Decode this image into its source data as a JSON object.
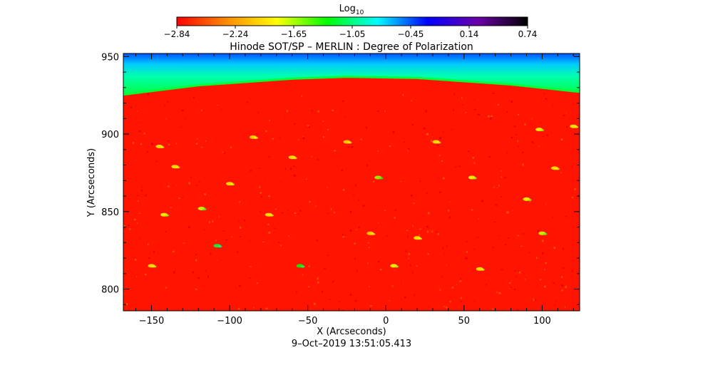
{
  "chart_data": {
    "type": "heatmap",
    "title": "Hinode SOT/SP – MERLIN : Degree of Polarization",
    "xlabel": "X (Arcseconds)",
    "ylabel": "Y (Arcseconds)",
    "timestamp": "9–Oct–2019 13:51:05.413",
    "xlim": [
      -168,
      124
    ],
    "ylim": [
      786,
      952
    ],
    "xticks": [
      -150,
      -100,
      -50,
      0,
      50,
      100
    ],
    "xtick_labels": [
      "−150",
      "−100",
      "−50",
      "0",
      "50",
      "100"
    ],
    "yticks": [
      800,
      850,
      900,
      950
    ],
    "ytick_labels": [
      "800",
      "850",
      "900",
      "950"
    ],
    "colorbar": {
      "label_base": "Log",
      "label_sub": "10",
      "ticks": [
        "−2.84",
        "−2.24",
        "−1.65",
        "−1.05",
        "−0.45",
        "0.14",
        "0.74"
      ],
      "range": [
        -2.84,
        0.74
      ],
      "colormap": "rainbow",
      "colors": [
        "#ff0000",
        "#ff8c00",
        "#ffff00",
        "#00ff00",
        "#00ffff",
        "#0000ff",
        "#6a00a8",
        "#000000"
      ]
    },
    "limb": {
      "x": [
        -168,
        -120,
        -60,
        -25,
        20,
        80,
        124
      ],
      "y": [
        925.5,
        931.5,
        935.7,
        937.0,
        936.2,
        932.0,
        927.2
      ]
    },
    "limb_level": -1.2,
    "background_level": -2.84,
    "sky_level": 0.0,
    "magnetic_patches": [
      {
        "x": -118,
        "y": 852,
        "level": -1.7
      },
      {
        "x": -142,
        "y": 848,
        "level": -1.8
      },
      {
        "x": -108,
        "y": 828,
        "level": -1.2
      },
      {
        "x": -55,
        "y": 815,
        "level": -1.3
      },
      {
        "x": -100,
        "y": 868,
        "level": -1.9
      },
      {
        "x": -145,
        "y": 892,
        "level": -1.9
      },
      {
        "x": -135,
        "y": 879,
        "level": -1.9
      },
      {
        "x": -85,
        "y": 898,
        "level": -2.0
      },
      {
        "x": -60,
        "y": 885,
        "level": -1.9
      },
      {
        "x": -5,
        "y": 872,
        "level": -1.6
      },
      {
        "x": 5,
        "y": 815,
        "level": -1.8
      },
      {
        "x": 32,
        "y": 895,
        "level": -1.9
      },
      {
        "x": 55,
        "y": 872,
        "level": -1.8
      },
      {
        "x": 90,
        "y": 858,
        "level": -1.8
      },
      {
        "x": 100,
        "y": 836,
        "level": -1.7
      },
      {
        "x": 98,
        "y": 903,
        "level": -1.8
      },
      {
        "x": 108,
        "y": 878,
        "level": -1.9
      },
      {
        "x": 20,
        "y": 833,
        "level": -1.9
      },
      {
        "x": -25,
        "y": 895,
        "level": -2.0
      },
      {
        "x": -150,
        "y": 815,
        "level": -1.9
      },
      {
        "x": 60,
        "y": 813,
        "level": -1.9
      },
      {
        "x": -75,
        "y": 848,
        "level": -1.9
      },
      {
        "x": 120,
        "y": 905,
        "level": -1.9
      },
      {
        "x": -10,
        "y": 836,
        "level": -2.0
      }
    ]
  }
}
